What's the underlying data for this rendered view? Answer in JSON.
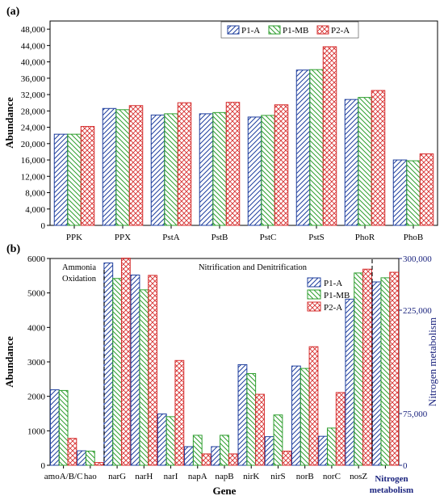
{
  "colors": {
    "P1-A": "#1f3f9e",
    "P1-MB": "#2e9e2e",
    "P2-A": "#d62f2f",
    "right_axis": "#1a237e"
  },
  "chart_data": [
    {
      "panel": "(a)",
      "type": "bar",
      "ylabel": "Abundance",
      "xlabel": "",
      "ylim": [
        0,
        50000
      ],
      "yticks": [
        0,
        4000,
        8000,
        12000,
        16000,
        20000,
        24000,
        28000,
        32000,
        36000,
        40000,
        44000,
        48000
      ],
      "ytick_labels": [
        "0",
        "4,000",
        "8,000",
        "12,000",
        "16,000",
        "20,000",
        "24,000",
        "28,000",
        "32,000",
        "36,000",
        "40,000",
        "44,000",
        "48,000"
      ],
      "categories": [
        "PPK",
        "PPX",
        "PstA",
        "PstB",
        "PstC",
        "PstS",
        "PhoR",
        "PhoB"
      ],
      "legend_position": "top-right",
      "series": [
        {
          "name": "P1-A",
          "values": [
            22300,
            28600,
            27000,
            27300,
            26500,
            38000,
            30800,
            16000
          ]
        },
        {
          "name": "P1-MB",
          "values": [
            22300,
            28300,
            27300,
            27600,
            26900,
            38100,
            31300,
            15800
          ]
        },
        {
          "name": "P2-A",
          "values": [
            24200,
            29300,
            30000,
            30100,
            29500,
            43700,
            33000,
            17500
          ]
        }
      ]
    },
    {
      "panel": "(b)",
      "type": "bar",
      "ylabel": "Abundance",
      "xlabel": "Gene",
      "ylim": [
        0,
        6000
      ],
      "yticks": [
        0,
        1000,
        2000,
        3000,
        4000,
        5000,
        6000
      ],
      "ytick_labels": [
        "0",
        "1000",
        "2000",
        "3000",
        "4000",
        "5000",
        "6000"
      ],
      "categories": [
        "amoA/B/C",
        "hao",
        "narG",
        "narH",
        "narI",
        "napA",
        "napB",
        "nirK",
        "nirS",
        "norB",
        "norC",
        "nosZ"
      ],
      "legend_position": "top-right",
      "series": [
        {
          "name": "P1-A",
          "values": [
            2190,
            420,
            5870,
            5520,
            1490,
            540,
            540,
            2920,
            830,
            2880,
            840,
            4820
          ]
        },
        {
          "name": "P1-MB",
          "values": [
            2170,
            410,
            5420,
            5090,
            1410,
            870,
            870,
            2660,
            1460,
            2810,
            1080,
            5580
          ]
        },
        {
          "name": "P2-A",
          "values": [
            780,
            80,
            6010,
            5510,
            3040,
            330,
            330,
            2060,
            410,
            3440,
            2110,
            5690
          ]
        }
      ],
      "secondary": {
        "category": "Nitrogen metabolism",
        "ylabel": "Nitrogen metabolism",
        "ylim": [
          0,
          300000
        ],
        "yticks": [
          0,
          75000,
          225000,
          300000
        ],
        "ytick_labels": [
          "0",
          "75,000",
          "225,000",
          "300,000"
        ],
        "values": [
          266000,
          272000,
          280000
        ]
      },
      "annotations": [
        "Ammonia\nOxidation",
        "Nitrification and Denitrification"
      ]
    }
  ]
}
